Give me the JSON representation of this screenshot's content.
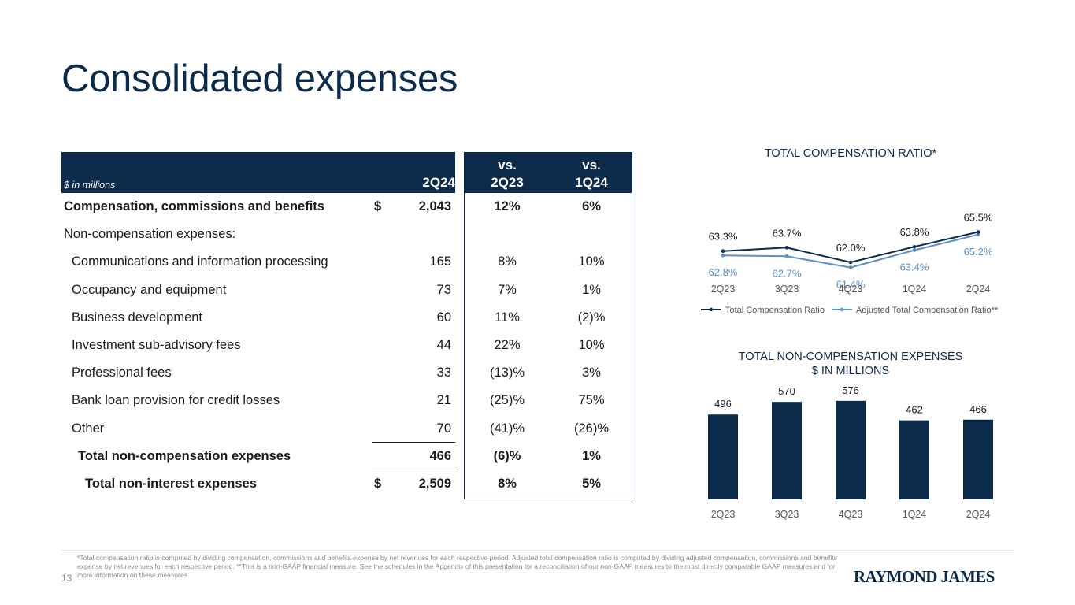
{
  "page": {
    "title": "Consolidated expenses",
    "page_number": "13",
    "logo_text": "RAYMOND JAMES",
    "footnote": "*Total compensation ratio is computed by dividing compensation, commissions and benefits expense by net revenues for each respective period. Adjusted total compensation ratio is computed by dividing adjusted compensation, commissions and benefits expense by net revenues for each respective period. **This is a non-GAAP financial measure. See the schedules in the Appendix of this presentation for a reconciliation of our non-GAAP measures to the most directly comparable GAAP measures and for more information on these measures."
  },
  "table": {
    "units_label": "$ in millions",
    "col_main": "2Q24",
    "col_a": [
      "vs.",
      "2Q23"
    ],
    "col_b": [
      "vs.",
      "1Q24"
    ],
    "rows": [
      {
        "label": "Compensation, commissions and benefits",
        "cur": "$",
        "value": "2,043",
        "pa": "12%",
        "pb": "6%"
      },
      {
        "label": "Non-compensation expenses:",
        "cur": "",
        "value": "",
        "pa": "",
        "pb": ""
      },
      {
        "label": "Communications and information processing",
        "cur": "",
        "value": "165",
        "pa": "8%",
        "pb": "10%"
      },
      {
        "label": "Occupancy and equipment",
        "cur": "",
        "value": "73",
        "pa": "7%",
        "pb": "1%"
      },
      {
        "label": "Business development",
        "cur": "",
        "value": "60",
        "pa": "11%",
        "pb": "(2)%"
      },
      {
        "label": "Investment sub-advisory fees",
        "cur": "",
        "value": "44",
        "pa": "22%",
        "pb": "10%"
      },
      {
        "label": "Professional fees",
        "cur": "",
        "value": "33",
        "pa": "(13)%",
        "pb": "3%"
      },
      {
        "label": "Bank loan provision for credit losses",
        "cur": "",
        "value": "21",
        "pa": "(25)%",
        "pb": "75%"
      },
      {
        "label": "Other",
        "cur": "",
        "value": "70",
        "pa": "(41)%",
        "pb": "(26)%"
      },
      {
        "label": "Total non-compensation expenses",
        "cur": "",
        "value": "466",
        "pa": "(6)%",
        "pb": "1%"
      },
      {
        "label": "Total non-interest expenses",
        "cur": "$",
        "value": "2,509",
        "pa": "8%",
        "pb": "5%"
      }
    ]
  },
  "chart_data": [
    {
      "type": "line",
      "title": "TOTAL COMPENSATION RATIO*",
      "x": [
        "2Q23",
        "3Q23",
        "4Q23",
        "1Q24",
        "2Q24"
      ],
      "series": [
        {
          "name": "Total Compensation Ratio",
          "values": [
            63.3,
            63.7,
            62.0,
            63.8,
            65.5
          ],
          "labels": [
            "63.3%",
            "63.7%",
            "62.0%",
            "63.8%",
            "65.5%"
          ],
          "color": "#0c2a4a"
        },
        {
          "name": "Adjusted Total Compensation Ratio**",
          "values": [
            62.8,
            62.7,
            61.4,
            63.4,
            65.2
          ],
          "labels": [
            "62.8%",
            "62.7%",
            "61.4%",
            "63.4%",
            "65.2%"
          ],
          "color": "#5b8fc7"
        }
      ],
      "legend": "bottom",
      "grid": false
    },
    {
      "type": "bar",
      "title": "TOTAL NON-COMPENSATION EXPENSES",
      "subtitle": "$ IN MILLIONS",
      "categories": [
        "2Q23",
        "3Q23",
        "4Q23",
        "1Q24",
        "2Q24"
      ],
      "values": [
        496,
        570,
        576,
        462,
        466
      ],
      "color": "#0c2a4a",
      "grid": false
    }
  ]
}
